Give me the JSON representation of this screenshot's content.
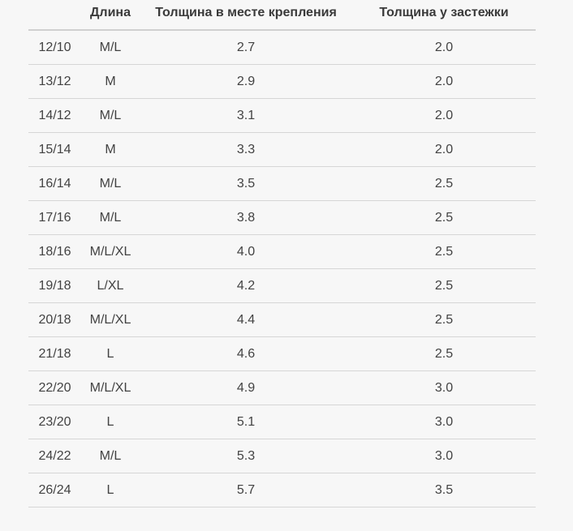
{
  "page": {
    "background_color": "#f7f7f7",
    "separator_color": "#d6d6d6",
    "header_text_color": "#3a3a3a",
    "cell_text_color": "#424242"
  },
  "table": {
    "headers": [
      "",
      "Длина",
      "Толщина в месте крепления",
      "Толщина у застежки"
    ],
    "rows": [
      [
        "12/10",
        "M/L",
        "2.7",
        "2.0"
      ],
      [
        "13/12",
        "M",
        "2.9",
        "2.0"
      ],
      [
        "14/12",
        "M/L",
        "3.1",
        "2.0"
      ],
      [
        "15/14",
        "M",
        "3.3",
        "2.0"
      ],
      [
        "16/14",
        "M/L",
        "3.5",
        "2.5"
      ],
      [
        "17/16",
        "M/L",
        "3.8",
        "2.5"
      ],
      [
        "18/16",
        "M/L/XL",
        "4.0",
        "2.5"
      ],
      [
        "19/18",
        "L/XL",
        "4.2",
        "2.5"
      ],
      [
        "20/18",
        "M/L/XL",
        "4.4",
        "2.5"
      ],
      [
        "21/18",
        "L",
        "4.6",
        "2.5"
      ],
      [
        "22/20",
        "M/L/XL",
        "4.9",
        "3.0"
      ],
      [
        "23/20",
        "L",
        "5.1",
        "3.0"
      ],
      [
        "24/22",
        "M/L",
        "5.3",
        "3.0"
      ],
      [
        "26/24",
        "L",
        "5.7",
        "3.5"
      ]
    ]
  }
}
